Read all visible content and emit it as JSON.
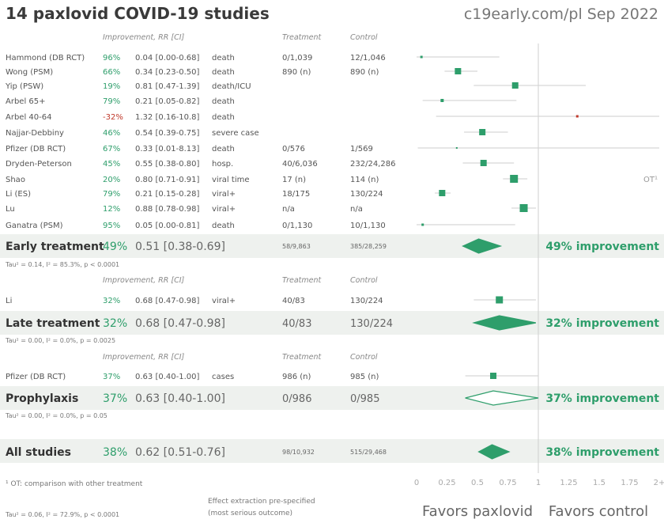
{
  "title": "14 paxlovid COVID-19 studies",
  "source": "c19early.com/pl Sep 2022",
  "colors": {
    "accent": "#2e9e6b",
    "negative": "#c0392b",
    "band": "#eef1ee",
    "grid": "#cccccc"
  },
  "headers": {
    "improvement": "Improvement, RR [CI]",
    "treatment": "Treatment",
    "control": "Control"
  },
  "chart_data": {
    "type": "forest",
    "xlim": [
      0,
      2
    ],
    "ticks": [
      "0",
      "0.25",
      "0.5",
      "0.75",
      "1",
      "1.25",
      "1.5",
      "1.75",
      "2+"
    ],
    "favors_left": "Favors paxlovid",
    "favors_right": "Favors control",
    "ot_marker": "OT¹",
    "groups": [
      {
        "name": "Early treatment",
        "studies": [
          {
            "name": "Hammond (DB RCT)",
            "improvement": "96%",
            "rr_text": "0.04 [0.00-0.68]",
            "outcome": "death",
            "treatment": "0/1,039",
            "control": "12/1,046",
            "rr": 0.04,
            "lo": 0.0,
            "hi": 0.68,
            "weight": 3
          },
          {
            "name": "Wong (PSM)",
            "improvement": "66%",
            "rr_text": "0.34 [0.23-0.50]",
            "outcome": "death",
            "treatment": "890 (n)",
            "control": "890 (n)",
            "rr": 0.34,
            "lo": 0.23,
            "hi": 0.5,
            "weight": 8
          },
          {
            "name": "Yip (PSW)",
            "improvement": "19%",
            "rr_text": "0.81 [0.47-1.39]",
            "outcome": "death/ICU",
            "treatment": "",
            "control": "",
            "rr": 0.81,
            "lo": 0.47,
            "hi": 1.39,
            "weight": 8
          },
          {
            "name": "Arbel 65+",
            "improvement": "79%",
            "rr_text": "0.21 [0.05-0.82]",
            "outcome": "death",
            "treatment": "",
            "control": "",
            "rr": 0.21,
            "lo": 0.05,
            "hi": 0.82,
            "weight": 4
          },
          {
            "name": "Arbel 40-64",
            "improvement": "-32%",
            "rr_text": "1.32 [0.16-10.8]",
            "outcome": "death",
            "treatment": "",
            "control": "",
            "rr": 1.32,
            "lo": 0.16,
            "hi": 10.8,
            "weight": 3,
            "negative": true
          },
          {
            "name": "Najjar-Debbiny",
            "improvement": "46%",
            "rr_text": "0.54 [0.39-0.75]",
            "outcome": "severe case",
            "treatment": "",
            "control": "",
            "rr": 0.54,
            "lo": 0.39,
            "hi": 0.75,
            "weight": 8
          },
          {
            "name": "Pfizer (DB RCT)",
            "improvement": "67%",
            "rr_text": "0.33 [0.01-8.13]",
            "outcome": "death",
            "treatment": "0/576",
            "control": "1/569",
            "rr": 0.33,
            "lo": 0.01,
            "hi": 8.13,
            "weight": 2
          },
          {
            "name": "Dryden-Peterson",
            "improvement": "45%",
            "rr_text": "0.55 [0.38-0.80]",
            "outcome": "hosp.",
            "treatment": "40/6,036",
            "control": "232/24,286",
            "rr": 0.55,
            "lo": 0.38,
            "hi": 0.8,
            "weight": 8
          },
          {
            "name": "Shao",
            "improvement": "20%",
            "rr_text": "0.80 [0.71-0.91]",
            "outcome": "viral time",
            "treatment": "17 (n)",
            "control": "114 (n)",
            "rr": 0.8,
            "lo": 0.71,
            "hi": 0.91,
            "weight": 10,
            "ot": true
          },
          {
            "name": "Li (ES)",
            "improvement": "79%",
            "rr_text": "0.21 [0.15-0.28]",
            "outcome": "viral+",
            "treatment": "18/175",
            "control": "130/224",
            "rr": 0.21,
            "lo": 0.15,
            "hi": 0.28,
            "weight": 8
          },
          {
            "name": "Lu",
            "improvement": "12%",
            "rr_text": "0.88 [0.78-0.98]",
            "outcome": "viral+",
            "treatment": "n/a",
            "control": "n/a",
            "rr": 0.88,
            "lo": 0.78,
            "hi": 0.98,
            "weight": 10
          },
          {
            "name": "Ganatra (PSM)",
            "improvement": "95%",
            "rr_text": "0.05 [0.00-0.81]",
            "outcome": "death",
            "treatment": "0/1,130",
            "control": "10/1,130",
            "rr": 0.05,
            "lo": 0.0,
            "hi": 0.81,
            "weight": 3
          }
        ],
        "summary": {
          "improvement": "49%",
          "rr_text": "0.51 [0.38-0.69]",
          "treatment": "58/9,863",
          "control": "385/28,259",
          "rr": 0.51,
          "lo": 0.38,
          "hi": 0.69,
          "imp_text": "49% improvement",
          "filled": true,
          "small_counts": true
        },
        "tau": "Tau² = 0.14, I² = 85.3%, p < 0.0001"
      },
      {
        "name": "Late treatment",
        "studies": [
          {
            "name": "Li",
            "improvement": "32%",
            "rr_text": "0.68 [0.47-0.98]",
            "outcome": "viral+",
            "treatment": "40/83",
            "control": "130/224",
            "rr": 0.68,
            "lo": 0.47,
            "hi": 0.98,
            "weight": 9
          }
        ],
        "summary": {
          "improvement": "32%",
          "rr_text": "0.68 [0.47-0.98]",
          "treatment": "40/83",
          "control": "130/224",
          "rr": 0.68,
          "lo": 0.47,
          "hi": 0.98,
          "imp_text": "32% improvement",
          "filled": true,
          "small_counts": false
        },
        "tau": "Tau² = 0.00, I² = 0.0%, p = 0.0025"
      },
      {
        "name": "Prophylaxis",
        "studies": [
          {
            "name": "Pfizer (DB RCT)",
            "improvement": "37%",
            "rr_text": "0.63 [0.40-1.00]",
            "outcome": "cases",
            "treatment": "986 (n)",
            "control": "985 (n)",
            "rr": 0.63,
            "lo": 0.4,
            "hi": 1.0,
            "weight": 8
          }
        ],
        "summary": {
          "improvement": "37%",
          "rr_text": "0.63 [0.40-1.00]",
          "treatment": "0/986",
          "control": "0/985",
          "rr": 0.63,
          "lo": 0.4,
          "hi": 1.0,
          "imp_text": "37% improvement",
          "filled": false,
          "small_counts": false
        },
        "tau": "Tau² = 0.00, I² = 0.0%, p = 0.05"
      }
    ],
    "all": {
      "name": "All studies",
      "improvement": "38%",
      "rr_text": "0.62 [0.51-0.76]",
      "treatment": "98/10,932",
      "control": "515/29,468",
      "rr": 0.62,
      "lo": 0.51,
      "hi": 0.76,
      "imp_text": "38% improvement"
    },
    "all_tau": "Tau² = 0.06, I² = 72.9%, p < 0.0001"
  },
  "footnote": "¹ OT: comparison with other treatment",
  "extraction_note_1": "Effect extraction pre-specified",
  "extraction_note_2": "(most serious outcome)"
}
